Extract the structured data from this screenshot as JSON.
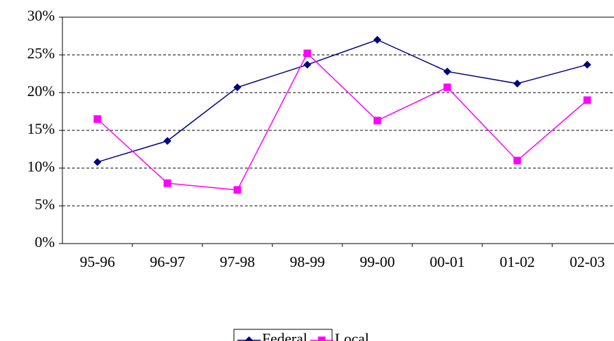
{
  "chart_data": {
    "type": "line",
    "categories": [
      "95-96",
      "96-97",
      "97-98",
      "98-99",
      "99-00",
      "00-01",
      "01-02",
      "02-03"
    ],
    "series": [
      {
        "name": "Federal",
        "color": "#000080",
        "marker": "diamond",
        "values": [
          10.8,
          13.6,
          20.7,
          23.7,
          27.0,
          22.8,
          21.2,
          23.7
        ]
      },
      {
        "name": "Local",
        "color": "#ff00ff",
        "marker": "square",
        "values": [
          16.5,
          8.0,
          7.1,
          25.2,
          16.3,
          20.7,
          11.0,
          19.0
        ]
      }
    ],
    "ylim": [
      0,
      30
    ],
    "yticks": [
      {
        "value": 0,
        "label": "0%"
      },
      {
        "value": 5,
        "label": "5%"
      },
      {
        "value": 10,
        "label": "10%"
      },
      {
        "value": 15,
        "label": "15%"
      },
      {
        "value": 20,
        "label": "20%"
      },
      {
        "value": 25,
        "label": "25%"
      },
      {
        "value": 30,
        "label": "30%"
      }
    ],
    "grid": true,
    "legend": "bottom"
  }
}
